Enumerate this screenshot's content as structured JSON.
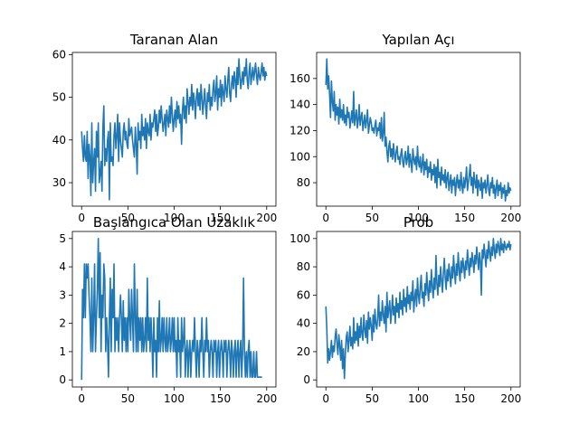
{
  "colors": {
    "line": "#1f77b4",
    "axis": "#000000",
    "background": "#ffffff"
  },
  "chart_data": [
    {
      "type": "line",
      "title": "Taranan Alan",
      "xlabel": "",
      "ylabel": "",
      "xlim": [
        -10,
        210
      ],
      "ylim": [
        24.5,
        60.5
      ],
      "xticks": [
        0,
        50,
        100,
        150,
        200
      ],
      "yticks": [
        30,
        40,
        50,
        60
      ],
      "grid": false,
      "series": [
        {
          "x_start": 0,
          "x_step": 1,
          "values": [
            42,
            38,
            35,
            41,
            36,
            35,
            42,
            31,
            39,
            36,
            27,
            44,
            30,
            35,
            38,
            28,
            42,
            36,
            44,
            30,
            32,
            35,
            28,
            43,
            48,
            34,
            38,
            35,
            40,
            42,
            26,
            44,
            35,
            36,
            34,
            41,
            44,
            38,
            41,
            46,
            35,
            44,
            40,
            38,
            36,
            42,
            44,
            40,
            42,
            39,
            38,
            45,
            41,
            42,
            43,
            40,
            38,
            36,
            43,
            39,
            32,
            44,
            40,
            42,
            38,
            46,
            41,
            43,
            40,
            45,
            38,
            44,
            42,
            41,
            46,
            40,
            44,
            43,
            45,
            47,
            42,
            46,
            41,
            43,
            47,
            44,
            48,
            45,
            42,
            44,
            46,
            41,
            47,
            45,
            43,
            48,
            44,
            50,
            46,
            42,
            45,
            47,
            43,
            49,
            45,
            48,
            44,
            46,
            39,
            47,
            50,
            45,
            48,
            44,
            52,
            49,
            46,
            50,
            48,
            53,
            47,
            51,
            49,
            45,
            50,
            52,
            48,
            51,
            47,
            53,
            50,
            46,
            49,
            52,
            48,
            45,
            51,
            49,
            53,
            47,
            50,
            48,
            52,
            54,
            49,
            51,
            55,
            47,
            52,
            50,
            54,
            48,
            53,
            51,
            49,
            55,
            52,
            50,
            54,
            57,
            51,
            49,
            53,
            55,
            52,
            56,
            54,
            50,
            57,
            53,
            59,
            55,
            52,
            54,
            56,
            53,
            57,
            55,
            59,
            54,
            52,
            56,
            58,
            53,
            55,
            57,
            54,
            56,
            58,
            55,
            53,
            57,
            55,
            54,
            56,
            58,
            55,
            57,
            54,
            56,
            55
          ]
        }
      ]
    },
    {
      "type": "line",
      "title": "Yapılan Açı",
      "xlabel": "",
      "ylabel": "",
      "xlim": [
        -10,
        210
      ],
      "ylim": [
        62,
        180
      ],
      "xticks": [
        0,
        50,
        100,
        150,
        200
      ],
      "yticks": [
        80,
        100,
        120,
        140,
        160
      ],
      "grid": false,
      "series": [
        {
          "x_start": 0,
          "x_step": 1,
          "values": [
            155,
            175,
            152,
            162,
            148,
            130,
            158,
            142,
            135,
            150,
            128,
            140,
            132,
            138,
            125,
            144,
            130,
            136,
            128,
            140,
            126,
            132,
            124,
            138,
            130,
            134,
            122,
            128,
            135,
            126,
            150,
            124,
            130,
            136,
            122,
            128,
            140,
            124,
            130,
            134,
            120,
            126,
            132,
            122,
            128,
            136,
            118,
            124,
            130,
            126,
            120,
            122,
            118,
            124,
            128,
            116,
            122,
            120,
            126,
            114,
            130,
            112,
            118,
            134,
            108,
            115,
            104,
            96,
            108,
            112,
            100,
            106,
            98,
            110,
            102,
            96,
            104,
            108,
            98,
            100,
            94,
            102,
            106,
            96,
            92,
            100,
            104,
            94,
            98,
            108,
            92,
            102,
            96,
            88,
            106,
            98,
            94,
            100,
            90,
            108,
            96,
            92,
            100,
            88,
            94,
            102,
            86,
            96,
            90,
            98,
            84,
            92,
            88,
            96,
            82,
            90,
            86,
            94,
            80,
            92,
            76,
            98,
            84,
            88,
            78,
            92,
            82,
            86,
            80,
            90,
            76,
            84,
            88,
            74,
            80,
            86,
            72,
            82,
            78,
            84,
            70,
            80,
            86,
            76,
            82,
            74,
            88,
            78,
            72,
            84,
            76,
            82,
            92,
            74,
            80,
            86,
            94,
            78,
            84,
            72,
            88,
            80,
            76,
            86,
            70,
            82,
            78,
            74,
            84,
            68,
            80,
            76,
            82,
            72,
            78,
            86,
            74,
            70,
            80,
            76,
            84,
            72,
            78,
            68,
            76,
            82,
            70,
            78,
            74,
            80,
            68,
            76,
            72,
            78,
            66,
            74,
            70,
            80,
            72,
            76,
            74
          ]
        }
      ]
    },
    {
      "type": "line",
      "title": "Başlangıca Olan Uzaklık",
      "xlabel": "",
      "ylabel": "",
      "xlim": [
        -10,
        210
      ],
      "ylim": [
        -0.25,
        5.25
      ],
      "xticks": [
        0,
        50,
        100,
        150,
        200
      ],
      "yticks": [
        0,
        1,
        2,
        3,
        4,
        5
      ],
      "grid": false,
      "series": [
        {
          "x_start": 0,
          "x_step": 1,
          "values": [
            0,
            3.2,
            2.2,
            4.1,
            2.2,
            4.1,
            3.6,
            4.1,
            3.0,
            2.2,
            1.0,
            3.6,
            1.0,
            2.2,
            4.1,
            1.0,
            2.2,
            3.2,
            5.0,
            2.2,
            4.5,
            1.0,
            3.0,
            2.2,
            4.1,
            3.6,
            1.0,
            2.2,
            1.4,
            0.1,
            2.2,
            3.6,
            1.0,
            3.2,
            2.2,
            4.1,
            1.0,
            2.2,
            1.4,
            2.2,
            1.0,
            2.2,
            3.0,
            2.2,
            1.0,
            2.8,
            1.4,
            2.2,
            1.0,
            2.2,
            1.0,
            3.2,
            2.2,
            1.4,
            3.2,
            2.2,
            1.0,
            4.1,
            2.2,
            1.0,
            3.2,
            1.0,
            2.2,
            1.4,
            2.2,
            1.0,
            2.2,
            1.0,
            1.4,
            2.2,
            1.0,
            3.6,
            1.4,
            2.2,
            1.0,
            2.2,
            1.4,
            0.1,
            2.2,
            1.0,
            1.4,
            0.1,
            2.2,
            1.0,
            2.8,
            1.0,
            1.4,
            2.2,
            1.0,
            2.2,
            1.4,
            1.0,
            2.2,
            1.0,
            1.4,
            2.2,
            1.0,
            1.4,
            2.2,
            1.0,
            2.2,
            1.0,
            1.4,
            0.1,
            2.2,
            1.0,
            1.4,
            0.1,
            2.2,
            1.0,
            1.4,
            2.2,
            0.1,
            1.0,
            1.4,
            0.1,
            1.0,
            1.4,
            0.1,
            1.0,
            1.4,
            1.0,
            2.2,
            1.0,
            0.1,
            1.4,
            1.0,
            0.1,
            1.4,
            1.0,
            2.2,
            1.0,
            0.1,
            1.4,
            1.0,
            2.2,
            1.0,
            1.4,
            0.1,
            1.0,
            1.4,
            1.0,
            0.1,
            1.4,
            1.0,
            1.4,
            0.1,
            1.0,
            1.4,
            0.1,
            1.0,
            1.4,
            1.0,
            0.1,
            1.4,
            1.0,
            1.4,
            0.1,
            1.0,
            1.4,
            1.0,
            0.1,
            1.4,
            1.0,
            0.1,
            1.0,
            1.4,
            0.1,
            1.0,
            1.4,
            0.1,
            1.0,
            1.4,
            0.1,
            1.0,
            3.6,
            1.0,
            0.1,
            1.0,
            0.1,
            1.0,
            1.4,
            0.1,
            1.0,
            0.1,
            0.1,
            1.0,
            0.1,
            0.1,
            1.0,
            0.1,
            0.1,
            0.1,
            0.1,
            0.1,
            0.1
          ]
        }
      ]
    },
    {
      "type": "line",
      "title": "Prob",
      "xlabel": "",
      "ylabel": "",
      "xlim": [
        -10,
        210
      ],
      "ylim": [
        -5,
        105
      ],
      "xticks": [
        0,
        50,
        100,
        150,
        200
      ],
      "yticks": [
        0,
        20,
        40,
        60,
        80,
        100
      ],
      "grid": false,
      "series": [
        {
          "x_start": 0,
          "x_step": 1,
          "values": [
            52,
            36,
            12,
            22,
            14,
            20,
            28,
            16,
            24,
            20,
            30,
            36,
            26,
            18,
            32,
            24,
            14,
            28,
            8,
            22,
            1,
            18,
            30,
            34,
            20,
            28,
            38,
            24,
            30,
            22,
            44,
            26,
            34,
            28,
            40,
            24,
            38,
            30,
            44,
            32,
            28,
            46,
            36,
            30,
            42,
            26,
            48,
            36,
            44,
            38,
            28,
            46,
            34,
            50,
            40,
            36,
            44,
            60,
            38,
            48,
            42,
            56,
            46,
            40,
            52,
            34,
            62,
            44,
            50,
            56,
            40,
            48,
            60,
            46,
            52,
            40,
            58,
            48,
            54,
            44,
            62,
            50,
            56,
            46,
            64,
            52,
            58,
            48,
            66,
            54,
            60,
            50,
            62,
            56,
            70,
            48,
            58,
            64,
            52,
            72,
            60,
            54,
            66,
            74,
            58,
            62,
            52,
            68,
            60,
            76,
            64,
            56,
            70,
            62,
            78,
            66,
            58,
            72,
            64,
            88,
            68,
            60,
            74,
            66,
            80,
            70,
            62,
            76,
            86,
            72,
            64,
            78,
            70,
            82,
            74,
            66,
            80,
            72,
            88,
            76,
            68,
            82,
            74,
            90,
            78,
            70,
            84,
            76,
            86,
            80,
            72,
            84,
            78,
            92,
            82,
            74,
            86,
            80,
            90,
            84,
            76,
            88,
            82,
            94,
            86,
            78,
            90,
            84,
            60,
            92,
            86,
            96,
            88,
            80,
            92,
            86,
            98,
            90,
            84,
            94,
            88,
            100,
            92,
            86,
            96,
            90,
            98,
            94,
            88,
            100,
            92,
            96,
            90,
            98,
            94,
            92,
            96,
            94,
            98,
            92,
            96
          ]
        }
      ]
    }
  ]
}
